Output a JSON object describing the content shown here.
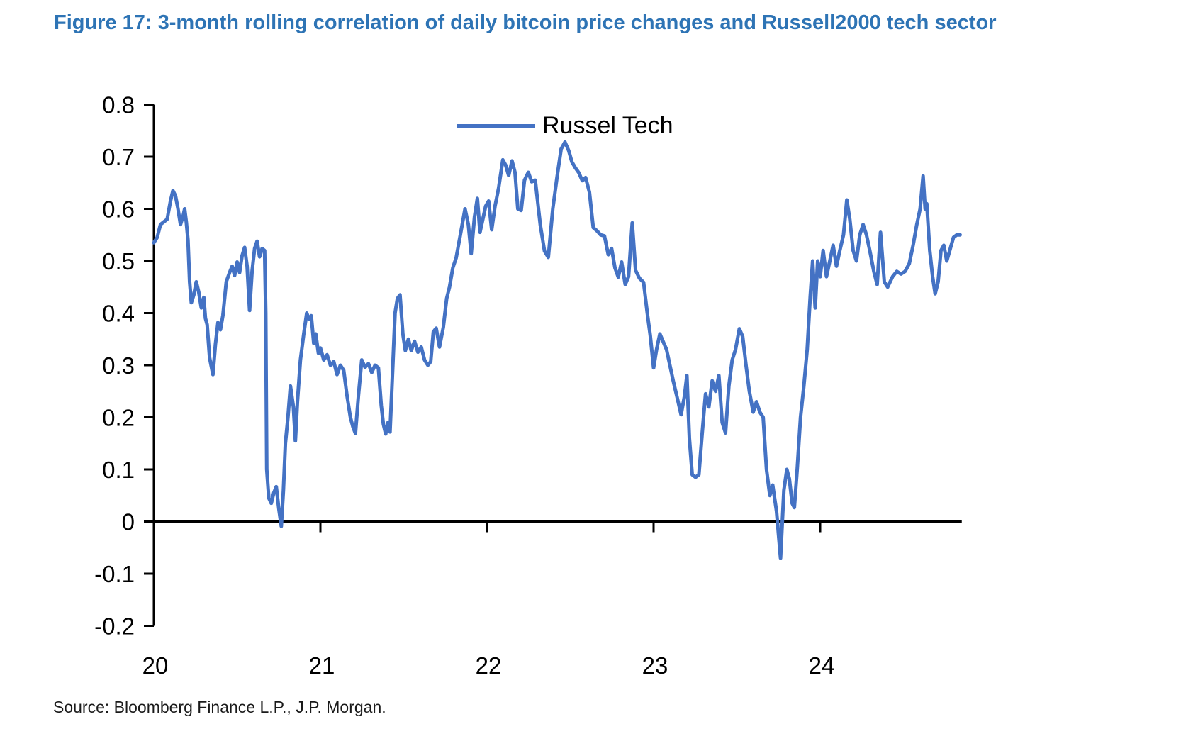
{
  "figure": {
    "title": "Figure 17: 3-month rolling correlation of daily bitcoin price changes and Russell2000 tech sector",
    "title_color": "#2E74B5",
    "source": "Source: Bloomberg Finance L.P., J.P. Morgan."
  },
  "legend": {
    "label": "Russel Tech",
    "line_color": "#4472C4"
  },
  "chart_data": {
    "type": "line",
    "title": "3-month rolling correlation of daily bitcoin price changes and Russell2000 tech sector",
    "xlabel": "",
    "ylabel": "",
    "grid": false,
    "legend_position": "top-center-inside",
    "xlim": [
      2020,
      2024.85
    ],
    "ylim": [
      -0.2,
      0.8
    ],
    "y_ticks": [
      "0.8",
      "0.7",
      "0.6",
      "0.5",
      "0.4",
      "0.3",
      "0.2",
      "0.1",
      "0",
      "-0.1",
      "-0.2"
    ],
    "x_ticks": [
      {
        "label": "20",
        "year": 2020
      },
      {
        "label": "21",
        "year": 2021
      },
      {
        "label": "22",
        "year": 2022
      },
      {
        "label": "23",
        "year": 2023
      },
      {
        "label": "24",
        "year": 2024
      }
    ],
    "axis_color": "#000000",
    "series": [
      {
        "name": "Russel Tech",
        "color": "#4472C4",
        "points": [
          [
            2020.0,
            0.535
          ],
          [
            2020.02,
            0.545
          ],
          [
            2020.04,
            0.57
          ],
          [
            2020.06,
            0.575
          ],
          [
            2020.08,
            0.58
          ],
          [
            2020.1,
            0.615
          ],
          [
            2020.115,
            0.635
          ],
          [
            2020.13,
            0.625
          ],
          [
            2020.145,
            0.6
          ],
          [
            2020.16,
            0.57
          ],
          [
            2020.175,
            0.585
          ],
          [
            2020.185,
            0.6
          ],
          [
            2020.195,
            0.575
          ],
          [
            2020.205,
            0.54
          ],
          [
            2020.215,
            0.46
          ],
          [
            2020.225,
            0.42
          ],
          [
            2020.24,
            0.435
          ],
          [
            2020.255,
            0.46
          ],
          [
            2020.27,
            0.44
          ],
          [
            2020.285,
            0.41
          ],
          [
            2020.3,
            0.43
          ],
          [
            2020.31,
            0.39
          ],
          [
            2020.32,
            0.378
          ],
          [
            2020.335,
            0.314
          ],
          [
            2020.355,
            0.282
          ],
          [
            2020.37,
            0.34
          ],
          [
            2020.385,
            0.382
          ],
          [
            2020.4,
            0.368
          ],
          [
            2020.415,
            0.396
          ],
          [
            2020.435,
            0.46
          ],
          [
            2020.455,
            0.478
          ],
          [
            2020.47,
            0.49
          ],
          [
            2020.485,
            0.472
          ],
          [
            2020.5,
            0.498
          ],
          [
            2020.515,
            0.478
          ],
          [
            2020.53,
            0.51
          ],
          [
            2020.545,
            0.526
          ],
          [
            2020.56,
            0.49
          ],
          [
            2020.575,
            0.405
          ],
          [
            2020.59,
            0.48
          ],
          [
            2020.605,
            0.524
          ],
          [
            2020.62,
            0.538
          ],
          [
            2020.635,
            0.508
          ],
          [
            2020.65,
            0.524
          ],
          [
            2020.665,
            0.52
          ],
          [
            2020.672,
            0.4
          ],
          [
            2020.678,
            0.1
          ],
          [
            2020.69,
            0.045
          ],
          [
            2020.705,
            0.035
          ],
          [
            2020.72,
            0.055
          ],
          [
            2020.735,
            0.067
          ],
          [
            2020.75,
            0.025
          ],
          [
            2020.765,
            -0.009
          ],
          [
            2020.778,
            0.06
          ],
          [
            2020.79,
            0.15
          ],
          [
            2020.805,
            0.2
          ],
          [
            2020.82,
            0.26
          ],
          [
            2020.838,
            0.22
          ],
          [
            2020.85,
            0.155
          ],
          [
            2020.862,
            0.23
          ],
          [
            2020.88,
            0.31
          ],
          [
            2020.9,
            0.36
          ],
          [
            2020.918,
            0.4
          ],
          [
            2020.932,
            0.388
          ],
          [
            2020.945,
            0.395
          ],
          [
            2020.96,
            0.342
          ],
          [
            2020.972,
            0.36
          ],
          [
            2020.988,
            0.323
          ],
          [
            2021.0,
            0.333
          ],
          [
            2021.02,
            0.31
          ],
          [
            2021.04,
            0.32
          ],
          [
            2021.06,
            0.3
          ],
          [
            2021.08,
            0.307
          ],
          [
            2021.1,
            0.282
          ],
          [
            2021.12,
            0.3
          ],
          [
            2021.14,
            0.29
          ],
          [
            2021.16,
            0.241
          ],
          [
            2021.18,
            0.2
          ],
          [
            2021.195,
            0.182
          ],
          [
            2021.21,
            0.169
          ],
          [
            2021.228,
            0.241
          ],
          [
            2021.248,
            0.31
          ],
          [
            2021.268,
            0.296
          ],
          [
            2021.288,
            0.303
          ],
          [
            2021.308,
            0.286
          ],
          [
            2021.328,
            0.3
          ],
          [
            2021.348,
            0.295
          ],
          [
            2021.365,
            0.223
          ],
          [
            2021.378,
            0.187
          ],
          [
            2021.392,
            0.168
          ],
          [
            2021.405,
            0.19
          ],
          [
            2021.418,
            0.172
          ],
          [
            2021.432,
            0.278
          ],
          [
            2021.448,
            0.4
          ],
          [
            2021.462,
            0.428
          ],
          [
            2021.478,
            0.435
          ],
          [
            2021.495,
            0.36
          ],
          [
            2021.51,
            0.328
          ],
          [
            2021.528,
            0.35
          ],
          [
            2021.545,
            0.328
          ],
          [
            2021.565,
            0.346
          ],
          [
            2021.585,
            0.325
          ],
          [
            2021.605,
            0.335
          ],
          [
            2021.625,
            0.31
          ],
          [
            2021.645,
            0.3
          ],
          [
            2021.662,
            0.307
          ],
          [
            2021.678,
            0.364
          ],
          [
            2021.695,
            0.371
          ],
          [
            2021.715,
            0.335
          ],
          [
            2021.738,
            0.373
          ],
          [
            2021.758,
            0.428
          ],
          [
            2021.775,
            0.45
          ],
          [
            2021.795,
            0.487
          ],
          [
            2021.815,
            0.506
          ],
          [
            2021.84,
            0.55
          ],
          [
            2021.868,
            0.6
          ],
          [
            2021.888,
            0.57
          ],
          [
            2021.905,
            0.514
          ],
          [
            2021.925,
            0.585
          ],
          [
            2021.942,
            0.62
          ],
          [
            2021.958,
            0.555
          ],
          [
            2021.975,
            0.58
          ],
          [
            2021.992,
            0.605
          ],
          [
            2022.01,
            0.615
          ],
          [
            2022.028,
            0.56
          ],
          [
            2022.048,
            0.605
          ],
          [
            2022.07,
            0.64
          ],
          [
            2022.095,
            0.694
          ],
          [
            2022.112,
            0.684
          ],
          [
            2022.13,
            0.664
          ],
          [
            2022.15,
            0.692
          ],
          [
            2022.168,
            0.67
          ],
          [
            2022.185,
            0.6
          ],
          [
            2022.205,
            0.597
          ],
          [
            2022.225,
            0.655
          ],
          [
            2022.248,
            0.67
          ],
          [
            2022.268,
            0.652
          ],
          [
            2022.29,
            0.655
          ],
          [
            2022.32,
            0.569
          ],
          [
            2022.345,
            0.519
          ],
          [
            2022.368,
            0.507
          ],
          [
            2022.395,
            0.6
          ],
          [
            2022.42,
            0.66
          ],
          [
            2022.445,
            0.715
          ],
          [
            2022.468,
            0.728
          ],
          [
            2022.49,
            0.712
          ],
          [
            2022.51,
            0.69
          ],
          [
            2022.53,
            0.679
          ],
          [
            2022.552,
            0.669
          ],
          [
            2022.572,
            0.654
          ],
          [
            2022.592,
            0.66
          ],
          [
            2022.615,
            0.632
          ],
          [
            2022.638,
            0.564
          ],
          [
            2022.66,
            0.558
          ],
          [
            2022.682,
            0.55
          ],
          [
            2022.705,
            0.548
          ],
          [
            2022.728,
            0.512
          ],
          [
            2022.748,
            0.524
          ],
          [
            2022.768,
            0.487
          ],
          [
            2022.788,
            0.469
          ],
          [
            2022.808,
            0.498
          ],
          [
            2022.83,
            0.455
          ],
          [
            2022.85,
            0.47
          ],
          [
            2022.872,
            0.573
          ],
          [
            2022.892,
            0.482
          ],
          [
            2022.915,
            0.467
          ],
          [
            2022.94,
            0.459
          ],
          [
            2022.962,
            0.4
          ],
          [
            2022.98,
            0.357
          ],
          [
            2023.0,
            0.295
          ],
          [
            2023.018,
            0.33
          ],
          [
            2023.038,
            0.36
          ],
          [
            2023.058,
            0.345
          ],
          [
            2023.078,
            0.33
          ],
          [
            2023.098,
            0.3
          ],
          [
            2023.118,
            0.27
          ],
          [
            2023.14,
            0.24
          ],
          [
            2023.165,
            0.205
          ],
          [
            2023.185,
            0.24
          ],
          [
            2023.2,
            0.28
          ],
          [
            2023.215,
            0.16
          ],
          [
            2023.232,
            0.09
          ],
          [
            2023.252,
            0.085
          ],
          [
            2023.272,
            0.09
          ],
          [
            2023.292,
            0.17
          ],
          [
            2023.312,
            0.245
          ],
          [
            2023.332,
            0.22
          ],
          [
            2023.352,
            0.27
          ],
          [
            2023.372,
            0.25
          ],
          [
            2023.392,
            0.28
          ],
          [
            2023.412,
            0.19
          ],
          [
            2023.432,
            0.17
          ],
          [
            2023.452,
            0.26
          ],
          [
            2023.472,
            0.31
          ],
          [
            2023.492,
            0.33
          ],
          [
            2023.515,
            0.37
          ],
          [
            2023.535,
            0.355
          ],
          [
            2023.555,
            0.3
          ],
          [
            2023.575,
            0.25
          ],
          [
            2023.598,
            0.21
          ],
          [
            2023.618,
            0.23
          ],
          [
            2023.638,
            0.21
          ],
          [
            2023.658,
            0.2
          ],
          [
            2023.678,
            0.1
          ],
          [
            2023.698,
            0.05
          ],
          [
            2023.715,
            0.07
          ],
          [
            2023.738,
            0.02
          ],
          [
            2023.762,
            -0.07
          ],
          [
            2023.782,
            0.06
          ],
          [
            2023.8,
            0.1
          ],
          [
            2023.815,
            0.082
          ],
          [
            2023.832,
            0.035
          ],
          [
            2023.845,
            0.027
          ],
          [
            2023.862,
            0.1
          ],
          [
            2023.882,
            0.2
          ],
          [
            2023.902,
            0.26
          ],
          [
            2023.922,
            0.33
          ],
          [
            2023.94,
            0.43
          ],
          [
            2023.955,
            0.5
          ],
          [
            2023.97,
            0.41
          ],
          [
            2023.985,
            0.5
          ],
          [
            2024.0,
            0.47
          ],
          [
            2024.018,
            0.52
          ],
          [
            2024.038,
            0.47
          ],
          [
            2024.058,
            0.5
          ],
          [
            2024.078,
            0.53
          ],
          [
            2024.098,
            0.49
          ],
          [
            2024.118,
            0.52
          ],
          [
            2024.14,
            0.55
          ],
          [
            2024.16,
            0.617
          ],
          [
            2024.178,
            0.58
          ],
          [
            2024.198,
            0.52
          ],
          [
            2024.218,
            0.5
          ],
          [
            2024.238,
            0.55
          ],
          [
            2024.258,
            0.57
          ],
          [
            2024.278,
            0.55
          ],
          [
            2024.298,
            0.52
          ],
          [
            2024.322,
            0.48
          ],
          [
            2024.342,
            0.455
          ],
          [
            2024.362,
            0.555
          ],
          [
            2024.385,
            0.46
          ],
          [
            2024.405,
            0.45
          ],
          [
            2024.435,
            0.47
          ],
          [
            2024.46,
            0.48
          ],
          [
            2024.485,
            0.475
          ],
          [
            2024.51,
            0.48
          ],
          [
            2024.535,
            0.495
          ],
          [
            2024.558,
            0.53
          ],
          [
            2024.58,
            0.57
          ],
          [
            2024.6,
            0.6
          ],
          [
            2024.618,
            0.663
          ],
          [
            2024.63,
            0.6
          ],
          [
            2024.64,
            0.61
          ],
          [
            2024.658,
            0.52
          ],
          [
            2024.675,
            0.47
          ],
          [
            2024.69,
            0.437
          ],
          [
            2024.708,
            0.46
          ],
          [
            2024.725,
            0.52
          ],
          [
            2024.742,
            0.53
          ],
          [
            2024.76,
            0.5
          ],
          [
            2024.778,
            0.52
          ],
          [
            2024.8,
            0.545
          ],
          [
            2024.82,
            0.55
          ],
          [
            2024.84,
            0.55
          ]
        ]
      }
    ]
  }
}
